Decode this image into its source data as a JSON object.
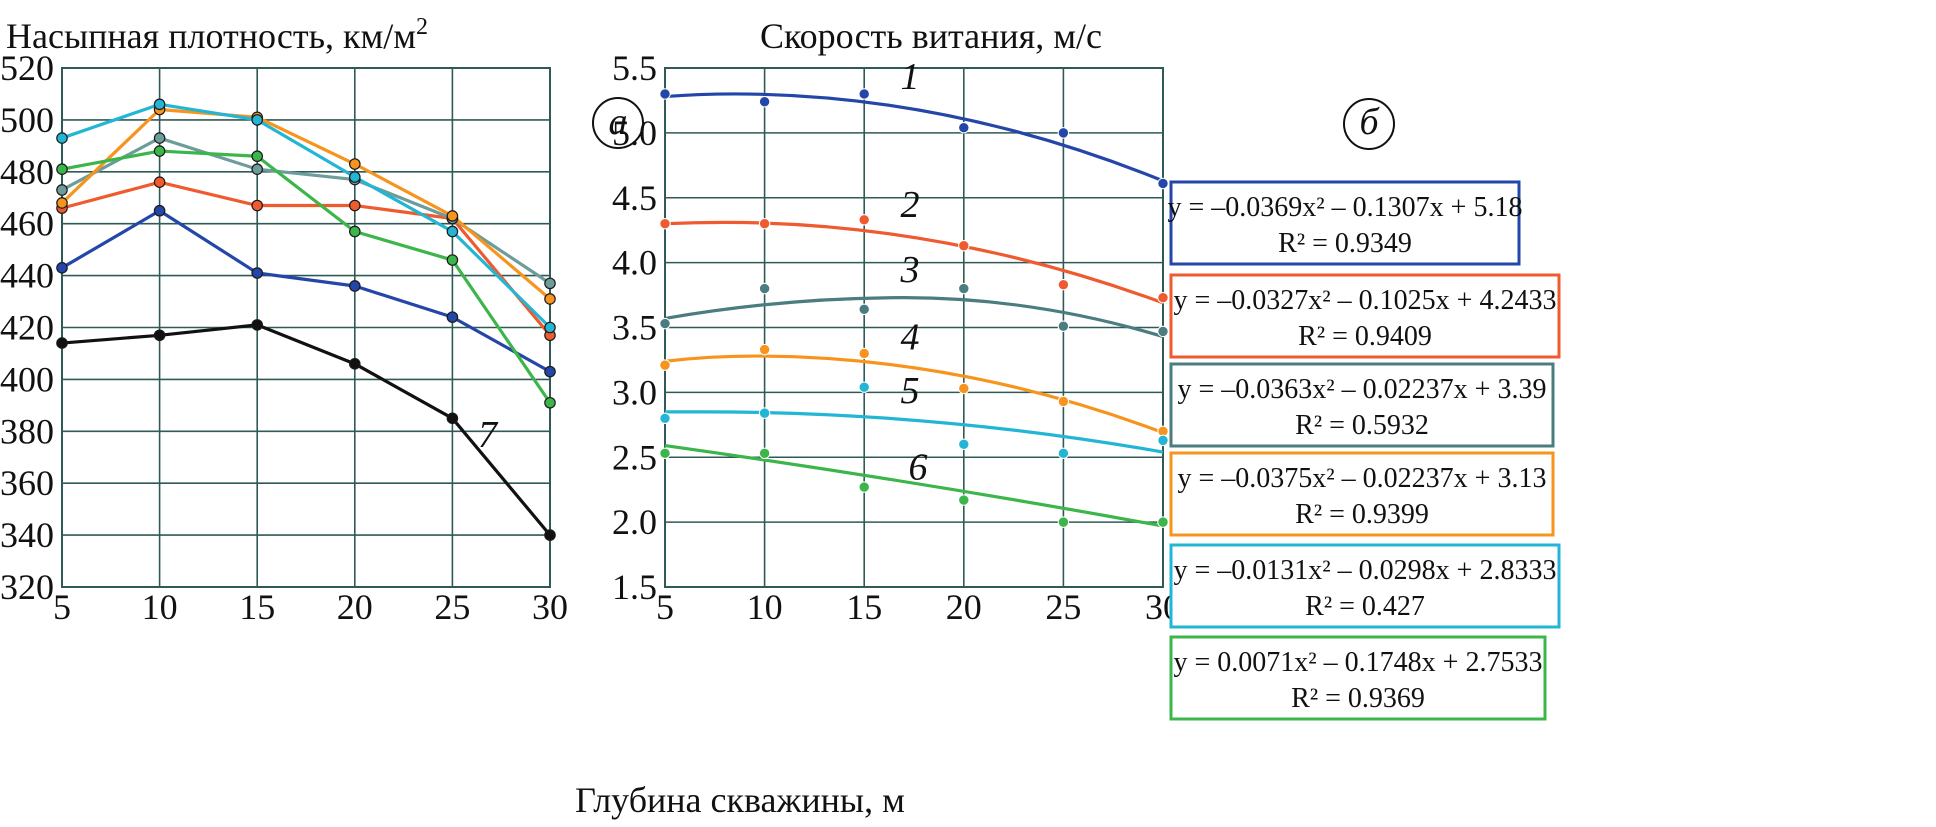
{
  "chart_data": [
    {
      "type": "line",
      "panel": "a",
      "ylabel": "Насыпная плотность, км/м",
      "ylabel_sup": "2",
      "ylim": [
        320,
        520
      ],
      "yticks": [
        320,
        340,
        360,
        380,
        400,
        420,
        440,
        460,
        480,
        500,
        520
      ],
      "x": [
        5,
        10,
        15,
        20,
        25,
        30
      ],
      "xticks": [
        5,
        10,
        15,
        20,
        25,
        30
      ],
      "xlim": [
        5,
        30
      ],
      "grid": true,
      "series": [
        {
          "values": [
            443,
            465,
            441,
            436,
            424,
            403
          ],
          "color": "#2346a8"
        },
        {
          "values": [
            466,
            476,
            467,
            467,
            462,
            417
          ],
          "color": "#ef5a2f"
        },
        {
          "values": [
            473,
            493,
            481,
            477,
            462,
            437
          ],
          "color": "#6d9c9a"
        },
        {
          "values": [
            468,
            504,
            501,
            483,
            463,
            431
          ],
          "color": "#f7941d"
        },
        {
          "values": [
            493,
            506,
            500,
            478,
            457,
            420
          ],
          "color": "#22b6d4"
        },
        {
          "values": [
            481,
            488,
            486,
            457,
            446,
            391
          ],
          "color": "#3cb54a"
        },
        {
          "name": "7",
          "values": [
            414,
            417,
            421,
            406,
            385,
            340
          ],
          "color": "#111111"
        }
      ],
      "curve_labels": [
        {
          "text": "7",
          "x": 26.8,
          "y": 374
        }
      ]
    },
    {
      "type": "scatter",
      "panel": "б",
      "ylabel": "Скорость витания, м/с",
      "ylim": [
        1.5,
        5.5
      ],
      "yticks": [
        "1.5",
        "2.0",
        "2.5",
        "3.0",
        "3.5",
        "4.0",
        "4.5",
        "5.0",
        "5.5"
      ],
      "x": [
        5,
        10,
        15,
        20,
        25,
        30
      ],
      "xticks": [
        5,
        10,
        15,
        20,
        25,
        30
      ],
      "xlim": [
        5,
        30
      ],
      "grid": true,
      "series": [
        {
          "name": "1",
          "values": [
            5.3,
            5.24,
            5.3,
            5.04,
            5.0,
            4.61
          ],
          "color": "#2346a8",
          "fit": "y = –0.0369x² – 0.1307x + 5.18",
          "r2": "R² = 0.9349",
          "fit_start": 5.28,
          "fit_peak": 5.3,
          "fit_peak_x": 8.5,
          "fit_end": 4.63
        },
        {
          "name": "2",
          "values": [
            4.3,
            4.3,
            4.33,
            4.13,
            3.83,
            3.73
          ],
          "color": "#ef5a2f",
          "fit": "y = –0.0327x² – 0.1025x + 4.2433",
          "r2": "R² = 0.9409",
          "fit_start": 4.3,
          "fit_peak": 4.31,
          "fit_peak_x": 8.0,
          "fit_end": 3.69
        },
        {
          "name": "3",
          "values": [
            3.53,
            3.8,
            3.64,
            3.8,
            3.51,
            3.47
          ],
          "color": "#4a7c80",
          "fit": "y = –0.0363x² – 0.02237x + 3.39",
          "r2": "R² = 0.5932",
          "fit_start": 3.57,
          "fit_peak": 3.73,
          "fit_peak_x": 17.0,
          "fit_end": 3.43
        },
        {
          "name": "4",
          "values": [
            3.21,
            3.33,
            3.3,
            3.03,
            2.93,
            2.7
          ],
          "color": "#f7941d",
          "fit": "y = –0.0375x² – 0.02237x + 3.13",
          "r2": "R² = 0.9399",
          "fit_start": 3.24,
          "fit_peak": 3.28,
          "fit_peak_x": 9.5,
          "fit_end": 2.69
        },
        {
          "name": "5",
          "values": [
            2.8,
            2.84,
            3.04,
            2.6,
            2.53,
            2.63
          ],
          "color": "#22b6d4",
          "fit": "y = –0.0131x² – 0.0298x + 2.8333",
          "r2": "R² = 0.427",
          "fit_start": 2.85,
          "fit_peak": 2.85,
          "fit_peak_x": 7.0,
          "fit_end": 2.54
        },
        {
          "name": "6",
          "values": [
            2.53,
            2.53,
            2.27,
            2.17,
            2.0,
            2.0
          ],
          "color": "#3cb54a",
          "fit": "y = 0.0071x² – 0.1748x + 2.7533",
          "r2": "R² = 0.9369",
          "fit_start": 2.59,
          "fit_peak": 2.59,
          "fit_peak_x": 5.0,
          "fit_end": 1.97
        }
      ],
      "curve_labels": [
        {
          "text": "1",
          "x": 17.3,
          "y": 5.34
        },
        {
          "text": "2",
          "x": 17.3,
          "y": 4.35
        },
        {
          "text": "3",
          "x": 17.3,
          "y": 3.85
        },
        {
          "text": "4",
          "x": 17.3,
          "y": 3.33
        },
        {
          "text": "5",
          "x": 17.3,
          "y": 2.92
        },
        {
          "text": "6",
          "x": 17.7,
          "y": 2.33
        }
      ]
    }
  ],
  "shared_xlabel": "Глубина скважины, м"
}
